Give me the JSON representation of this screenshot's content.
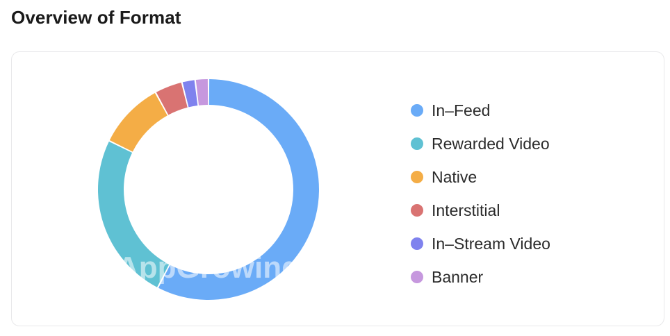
{
  "page": {
    "title": "Overview of Format"
  },
  "watermark": "AppGrowing",
  "chart_data": {
    "type": "pie",
    "variant": "donut",
    "legend_position": "right",
    "categories": [
      "In-Feed",
      "Rewarded Video",
      "Native",
      "Interstitial",
      "In-Stream Video",
      "Banner"
    ],
    "values": [
      56.5,
      24.2,
      9.6,
      4.0,
      1.9,
      1.9
    ],
    "colors": [
      "#6aabf7",
      "#5fc1d3",
      "#f4ad46",
      "#d97372",
      "#7f82ee",
      "#c698de"
    ],
    "legend": [
      "In–Feed",
      "Rewarded Video",
      "Native",
      "Interstitial",
      "In–Stream Video",
      "Banner"
    ]
  }
}
